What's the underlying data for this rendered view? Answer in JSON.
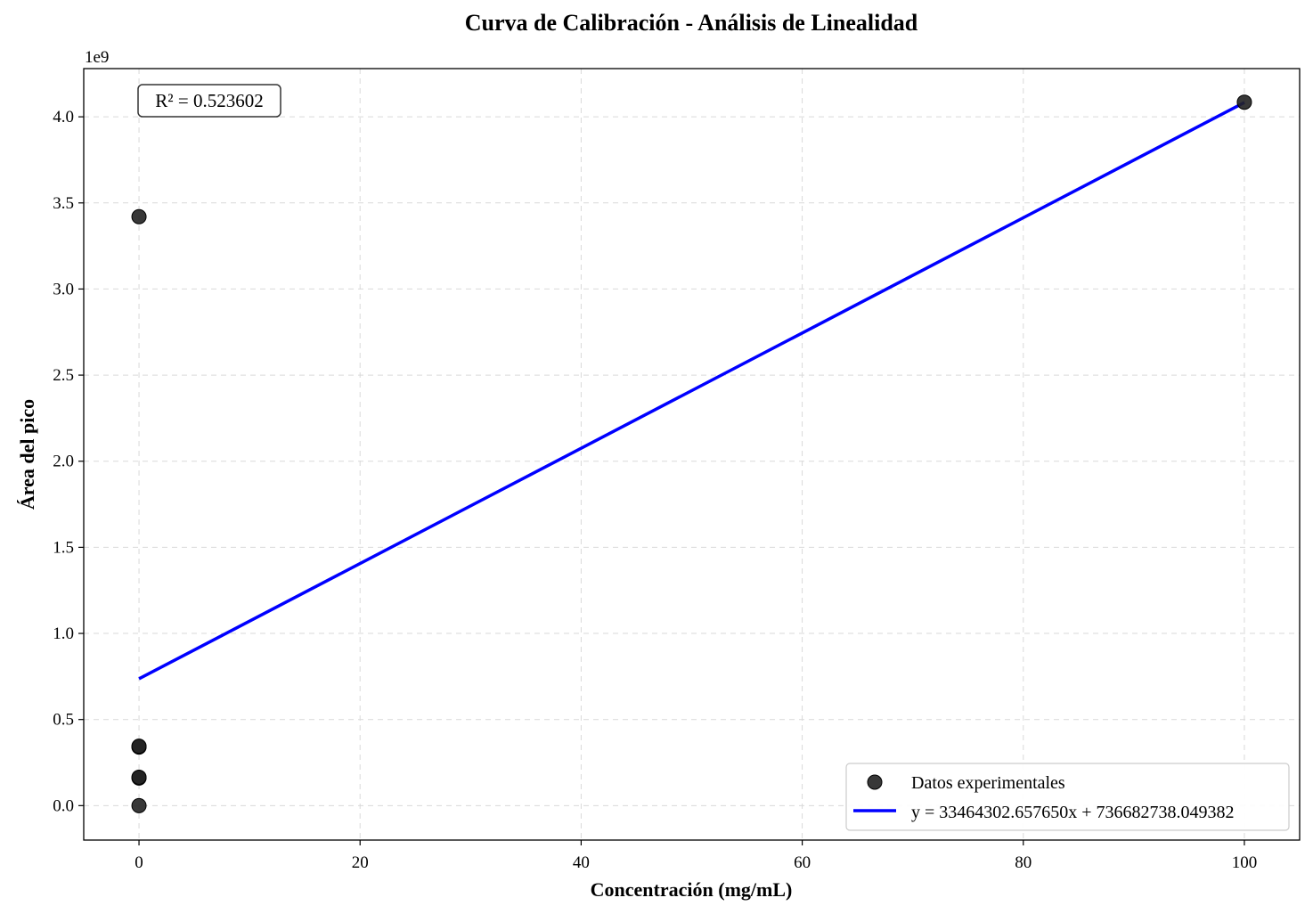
{
  "chart_data": {
    "type": "scatter",
    "title": "Curva de Calibración - Análisis de Linealidad",
    "xlabel": "Concentración (mg/mL)",
    "ylabel": "Área del pico",
    "y_offset_label": "1e9",
    "xlim": [
      -5,
      105
    ],
    "ylim": [
      -0.2,
      4.28
    ],
    "x_ticks": [
      0,
      20,
      40,
      60,
      80,
      100
    ],
    "y_ticks": [
      0.0,
      0.5,
      1.0,
      1.5,
      2.0,
      2.5,
      3.0,
      3.5,
      4.0
    ],
    "grid": true,
    "legend_position": "lower-right",
    "annotation": "R² = 0.523602",
    "series": [
      {
        "name": "Datos experimentales",
        "kind": "scatter",
        "color": "#222222",
        "points": [
          {
            "x": 0,
            "y": 0.0
          },
          {
            "x": 0,
            "y": 0.16
          },
          {
            "x": 0,
            "y": 0.165
          },
          {
            "x": 0,
            "y": 0.34
          },
          {
            "x": 0,
            "y": 0.345
          },
          {
            "x": 0,
            "y": 3.42
          },
          {
            "x": 100,
            "y": 4.085
          }
        ]
      },
      {
        "name": "y = 33464302.657650x + 736682738.049382",
        "kind": "line",
        "color": "#0000ff",
        "points": [
          {
            "x": 0,
            "y": 0.7367
          },
          {
            "x": 100,
            "y": 4.0831
          }
        ]
      }
    ]
  }
}
